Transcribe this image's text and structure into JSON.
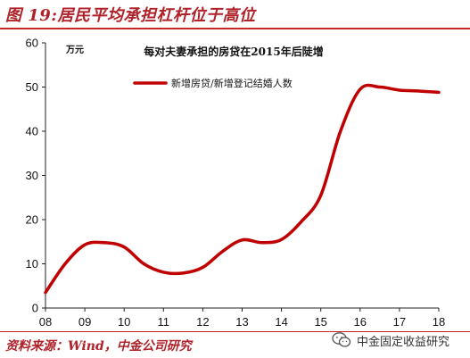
{
  "figure": {
    "title": "图 19:居民平均承担杠杆位于高位",
    "source": "资料来源：Wind，中金公司研究",
    "watermark": "中金固定收益研究",
    "accent_color": "#c62828",
    "title_color": "#b0222a"
  },
  "chart_data": {
    "type": "line",
    "title": "每对夫妻承担的房贷在2015年后陡增",
    "ylabel": "万元",
    "xlabel": "",
    "ylim": [
      0,
      60
    ],
    "yticks": [
      0,
      10,
      20,
      30,
      40,
      50,
      60
    ],
    "categories": [
      "08",
      "09",
      "10",
      "11",
      "12",
      "13",
      "14",
      "15",
      "16",
      "17",
      "18"
    ],
    "grid": false,
    "legend_placement": "top-center",
    "series": [
      {
        "name": "新增房贷/新增登记结婚人数",
        "color": "#c00000",
        "x": [
          2008.0,
          2008.5,
          2009.0,
          2009.5,
          2010.0,
          2010.5,
          2011.0,
          2011.5,
          2012.0,
          2012.5,
          2013.0,
          2013.5,
          2014.0,
          2014.5,
          2015.0,
          2015.5,
          2016.0,
          2016.5,
          2017.0,
          2017.5,
          2018.0
        ],
        "values": [
          3.5,
          10.0,
          14.3,
          14.8,
          13.8,
          10.0,
          8.1,
          7.9,
          9.2,
          12.8,
          15.4,
          14.8,
          15.5,
          19.5,
          25.5,
          40.0,
          49.5,
          50.0,
          49.3,
          49.1,
          48.8
        ]
      }
    ]
  }
}
